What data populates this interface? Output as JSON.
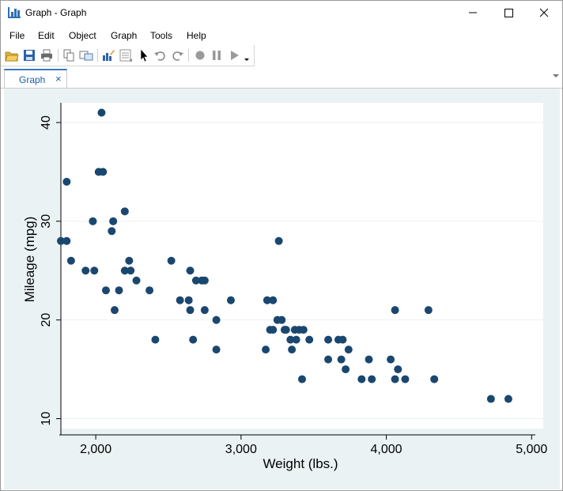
{
  "window": {
    "title": "Graph - Graph"
  },
  "menu": [
    "File",
    "Edit",
    "Object",
    "Graph",
    "Tools",
    "Help"
  ],
  "toolbar": {
    "icons": [
      "open-icon",
      "save-icon",
      "print-icon",
      "copy-icon",
      "copy-graph-icon",
      "graph-editor-icon",
      "data-editor-icon",
      "pointer-icon",
      "undo-icon",
      "redo-icon",
      "record-icon",
      "pause-icon",
      "play-icon",
      "dropdown-icon"
    ]
  },
  "tabs": [
    {
      "label": "Graph",
      "close": "×"
    }
  ],
  "colors": {
    "marker": "#1a476f",
    "plot_bg": "#ffffff",
    "graph_bg": "#eaf2f3",
    "grid": "#eaf2f3",
    "accent": "#3a78c4"
  },
  "chart_data": {
    "type": "scatter",
    "xlabel": "Weight (lbs.)",
    "ylabel": "Mileage (mpg)",
    "xlim": [
      1760,
      5080
    ],
    "ylim": [
      9,
      42
    ],
    "xticks": [
      2000,
      3000,
      4000,
      5000
    ],
    "xtick_labels": [
      "2,000",
      "3,000",
      "4,000",
      "5,000"
    ],
    "yticks": [
      10,
      20,
      30,
      40
    ],
    "ytick_labels": [
      "10",
      "20",
      "30",
      "40"
    ],
    "grid": "horizontal",
    "points": [
      [
        1760,
        28
      ],
      [
        1800,
        28
      ],
      [
        1800,
        34
      ],
      [
        1830,
        26
      ],
      [
        1930,
        25
      ],
      [
        1980,
        30
      ],
      [
        1990,
        25
      ],
      [
        2020,
        35
      ],
      [
        2040,
        41
      ],
      [
        2050,
        35
      ],
      [
        2070,
        23
      ],
      [
        2110,
        29
      ],
      [
        2120,
        30
      ],
      [
        2130,
        21
      ],
      [
        2160,
        23
      ],
      [
        2200,
        31
      ],
      [
        2200,
        25
      ],
      [
        2230,
        26
      ],
      [
        2240,
        25
      ],
      [
        2280,
        24
      ],
      [
        2370,
        23
      ],
      [
        2410,
        18
      ],
      [
        2520,
        26
      ],
      [
        2580,
        22
      ],
      [
        2640,
        22
      ],
      [
        2650,
        25
      ],
      [
        2650,
        21
      ],
      [
        2670,
        18
      ],
      [
        2690,
        24
      ],
      [
        2730,
        24
      ],
      [
        2750,
        24
      ],
      [
        2750,
        21
      ],
      [
        2830,
        20
      ],
      [
        2830,
        17
      ],
      [
        2930,
        22
      ],
      [
        3170,
        17
      ],
      [
        3180,
        22
      ],
      [
        3200,
        19
      ],
      [
        3220,
        19
      ],
      [
        3220,
        22
      ],
      [
        3250,
        20
      ],
      [
        3260,
        28
      ],
      [
        3280,
        20
      ],
      [
        3300,
        19
      ],
      [
        3310,
        19
      ],
      [
        3340,
        18
      ],
      [
        3350,
        17
      ],
      [
        3370,
        19
      ],
      [
        3380,
        18
      ],
      [
        3400,
        19
      ],
      [
        3420,
        14
      ],
      [
        3430,
        19
      ],
      [
        3470,
        18
      ],
      [
        3600,
        16
      ],
      [
        3600,
        18
      ],
      [
        3670,
        18
      ],
      [
        3690,
        16
      ],
      [
        3700,
        18
      ],
      [
        3720,
        15
      ],
      [
        3740,
        17
      ],
      [
        3830,
        14
      ],
      [
        3880,
        16
      ],
      [
        3900,
        14
      ],
      [
        4030,
        16
      ],
      [
        4060,
        14
      ],
      [
        4060,
        21
      ],
      [
        4080,
        15
      ],
      [
        4130,
        14
      ],
      [
        4290,
        21
      ],
      [
        4330,
        14
      ],
      [
        4720,
        12
      ],
      [
        4840,
        12
      ]
    ]
  }
}
